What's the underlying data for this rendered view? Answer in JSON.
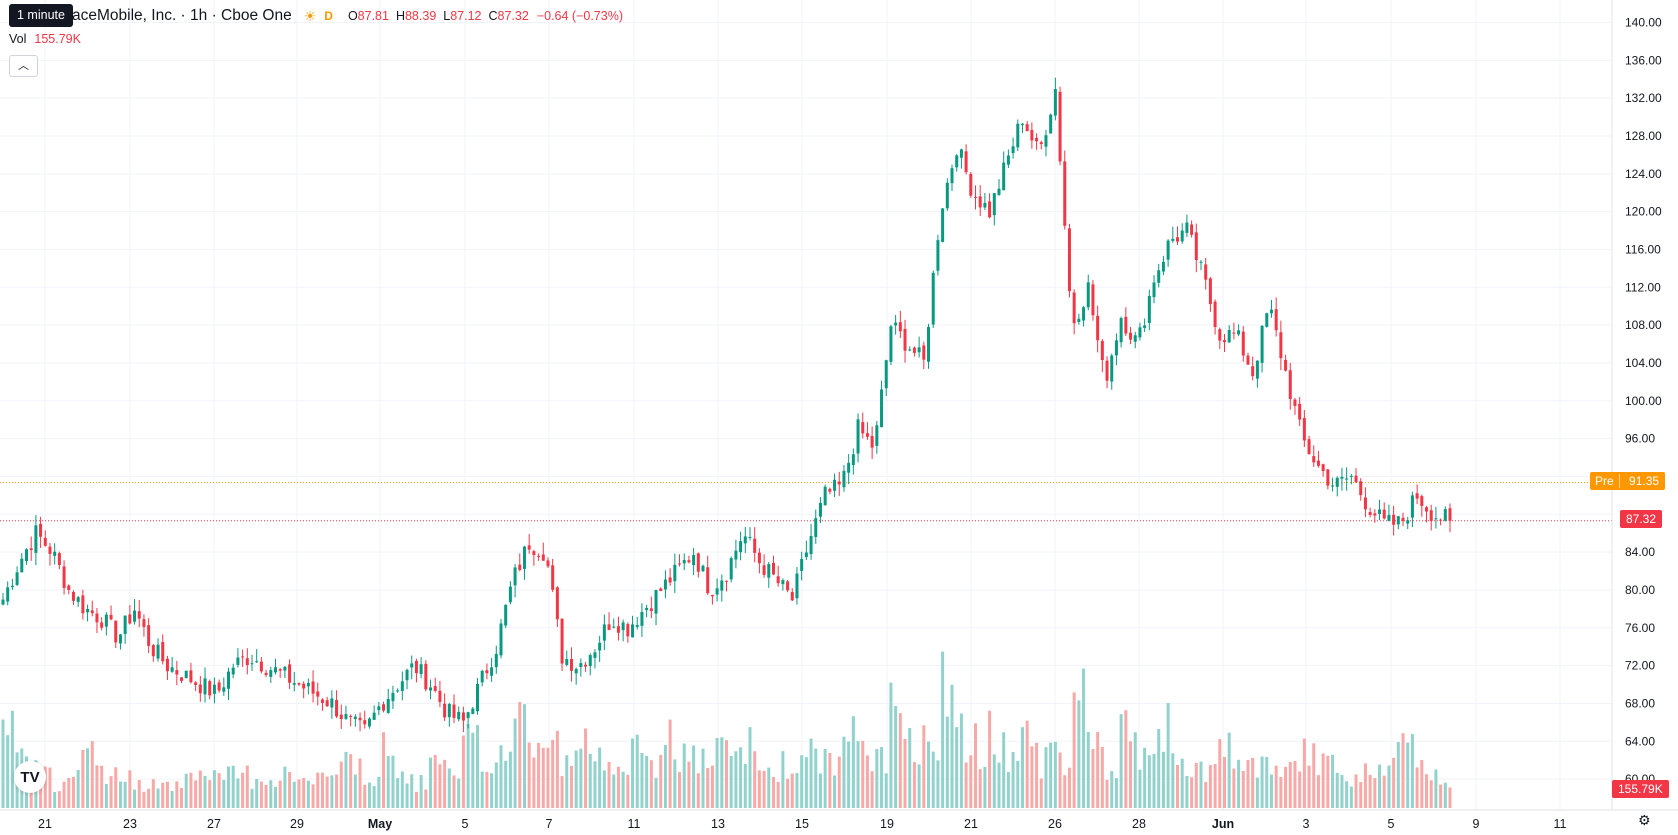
{
  "header": {
    "symbol_text": "aceMobile, Inc. · 1h · Cboe One",
    "session_icon": "sun-icon",
    "delayed_badge": "D",
    "o_label": "O",
    "o_value": "87.81",
    "h_label": "H",
    "h_value": "88.39",
    "l_label": "L",
    "l_value": "87.12",
    "c_label": "C",
    "c_value": "87.32",
    "change": "−0.64 (−0.73%)"
  },
  "tooltip": "1 minute",
  "volume_row": {
    "label": "Vol",
    "value": "155.79K"
  },
  "collapse_icon": "chevron-up-icon",
  "badges": {
    "pre_label": "Pre",
    "pre_value": "91.35",
    "last_price": "87.32",
    "last_volume": "155.79K"
  },
  "colors": {
    "up": "#089981",
    "down": "#f23645",
    "vol_up": "#92d2cc",
    "vol_down": "#f7a9a7",
    "pre_line": "#ff9800",
    "grid": "#f0f3fa"
  },
  "logo_text": "TV",
  "settings_icon": "gear-icon",
  "chart_data": {
    "type": "candlestick",
    "y_axis_ticks": [
      "60.00",
      "64.00",
      "68.00",
      "72.00",
      "76.00",
      "80.00",
      "84.00",
      "88.00",
      "92.00",
      "96.00",
      "100.00",
      "104.00",
      "108.00",
      "112.00",
      "116.00",
      "120.00",
      "124.00",
      "128.00",
      "132.00",
      "136.00",
      "140.00"
    ],
    "x_axis_ticks": [
      "21",
      "23",
      "27",
      "29",
      "May",
      "5",
      "7",
      "11",
      "13",
      "15",
      "19",
      "21",
      "26",
      "28",
      "Jun",
      "3",
      "5",
      "9",
      "11"
    ],
    "ylim": [
      56.4,
      141.4
    ],
    "close_path": [
      79,
      83,
      86,
      84,
      80,
      78,
      77,
      75,
      78,
      74,
      72,
      71,
      70,
      69,
      72,
      73,
      72,
      71,
      70,
      69,
      68,
      66,
      65,
      68,
      70,
      72,
      70,
      67,
      66,
      70,
      74,
      81,
      85,
      84,
      73,
      72,
      74,
      77,
      76,
      78,
      80,
      82,
      84,
      80,
      82,
      86,
      83,
      81,
      79,
      85,
      90,
      91,
      97,
      95,
      108,
      106,
      104,
      120,
      127,
      122,
      120,
      125,
      130,
      126,
      133,
      108,
      112,
      102,
      109,
      106,
      113,
      117,
      118,
      113,
      107,
      107,
      103,
      110,
      103,
      96,
      93,
      91,
      92,
      89,
      87,
      87,
      90,
      88,
      87.3
    ],
    "volume_profile": [
      0.92,
      0.55,
      0.38,
      0.26,
      0.45,
      0.62,
      0.35,
      0.28,
      0.22,
      0.32,
      0.24,
      0.44,
      0.28,
      0.31,
      0.34,
      0.3,
      0.32,
      0.33,
      0.26,
      0.26,
      0.48,
      0.48,
      0.28,
      0.56,
      0.3,
      0.26,
      0.42,
      0.3,
      0.62,
      0.44,
      0.58,
      0.92,
      0.65,
      0.62,
      0.45,
      0.62,
      0.48,
      0.55,
      0.54,
      0.38,
      0.72,
      0.5,
      0.48,
      0.52,
      0.52,
      0.62,
      0.38,
      0.42,
      0.46,
      0.52,
      0.46,
      0.68,
      0.55,
      0.5,
      0.92,
      0.7,
      0.78,
      1.15,
      0.7,
      0.62,
      0.72,
      0.48,
      0.7,
      0.48,
      0.5,
      1.25,
      0.62,
      0.42,
      0.72,
      0.44,
      0.78,
      0.48,
      0.44,
      0.4,
      0.55,
      0.44,
      0.38,
      0.34,
      0.36,
      0.58,
      0.44,
      0.34,
      0.34,
      0.34,
      0.48,
      0.58,
      0.38,
      0.32,
      0.3
    ]
  }
}
